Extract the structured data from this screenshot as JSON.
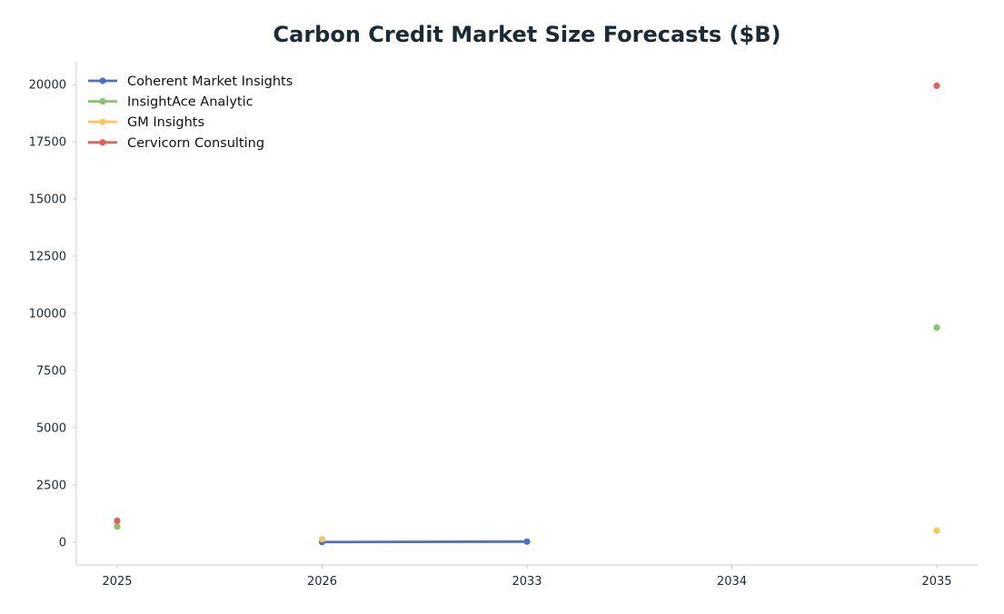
{
  "chart_data": {
    "type": "line",
    "title": "Carbon Credit Market Size Forecasts ($B)",
    "xlabel": "",
    "ylabel": "",
    "categories": [
      "2025",
      "2026",
      "2033",
      "2034",
      "2035"
    ],
    "ylim": [
      -1000,
      21000
    ],
    "yticks": [
      0,
      2500,
      5000,
      7500,
      10000,
      12500,
      15000,
      17500,
      20000
    ],
    "grid": false,
    "legend_position": "top-left",
    "series": [
      {
        "name": "Coherent Market Insights",
        "color": "#4f6fc4",
        "values": [
          null,
          2,
          20,
          null,
          null
        ]
      },
      {
        "name": "InsightAce Analytic",
        "color": "#88c46a",
        "values": [
          680,
          null,
          null,
          null,
          9380
        ]
      },
      {
        "name": "GM Insights",
        "color": "#f5c85a",
        "values": [
          null,
          130,
          null,
          null,
          500
        ]
      },
      {
        "name": "Cervicorn Consulting",
        "color": "#e0605c",
        "values": [
          930,
          null,
          null,
          null,
          19950
        ]
      }
    ]
  }
}
